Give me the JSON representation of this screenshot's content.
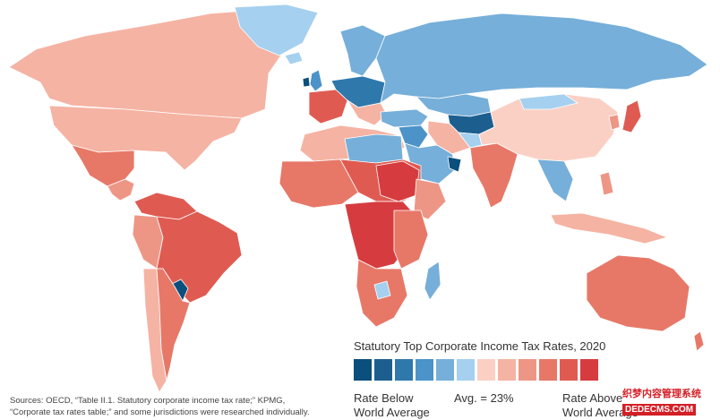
{
  "legend": {
    "title": "Statutory Top Corporate Income Tax Rates, 2020",
    "below_line1": "Rate Below",
    "below_line2": "World Average",
    "avg": "Avg. = 23%",
    "above_line1": "Rate Above",
    "above_line2": "World Average",
    "scale_colors": [
      "#0b4f7c",
      "#1c5f8f",
      "#2f78ac",
      "#4b93c9",
      "#76afd9",
      "#a6d0ef",
      "#fbd0c4",
      "#f5b3a3",
      "#ee9685",
      "#e77868",
      "#df5b52",
      "#d63c3f"
    ]
  },
  "sources": {
    "line1": "Sources: OECD, “Table II.1. Statutory corporate income tax rate;” KPMG,",
    "line2": "“Corporate tax rates table;” and some jurisdictions were researched individually."
  },
  "watermark": {
    "cn": "织梦内容管理系统",
    "en": "DEDECMS.COM"
  },
  "colors": {
    "background": "#ffffff",
    "no_data": "#d9d9d9"
  }
}
